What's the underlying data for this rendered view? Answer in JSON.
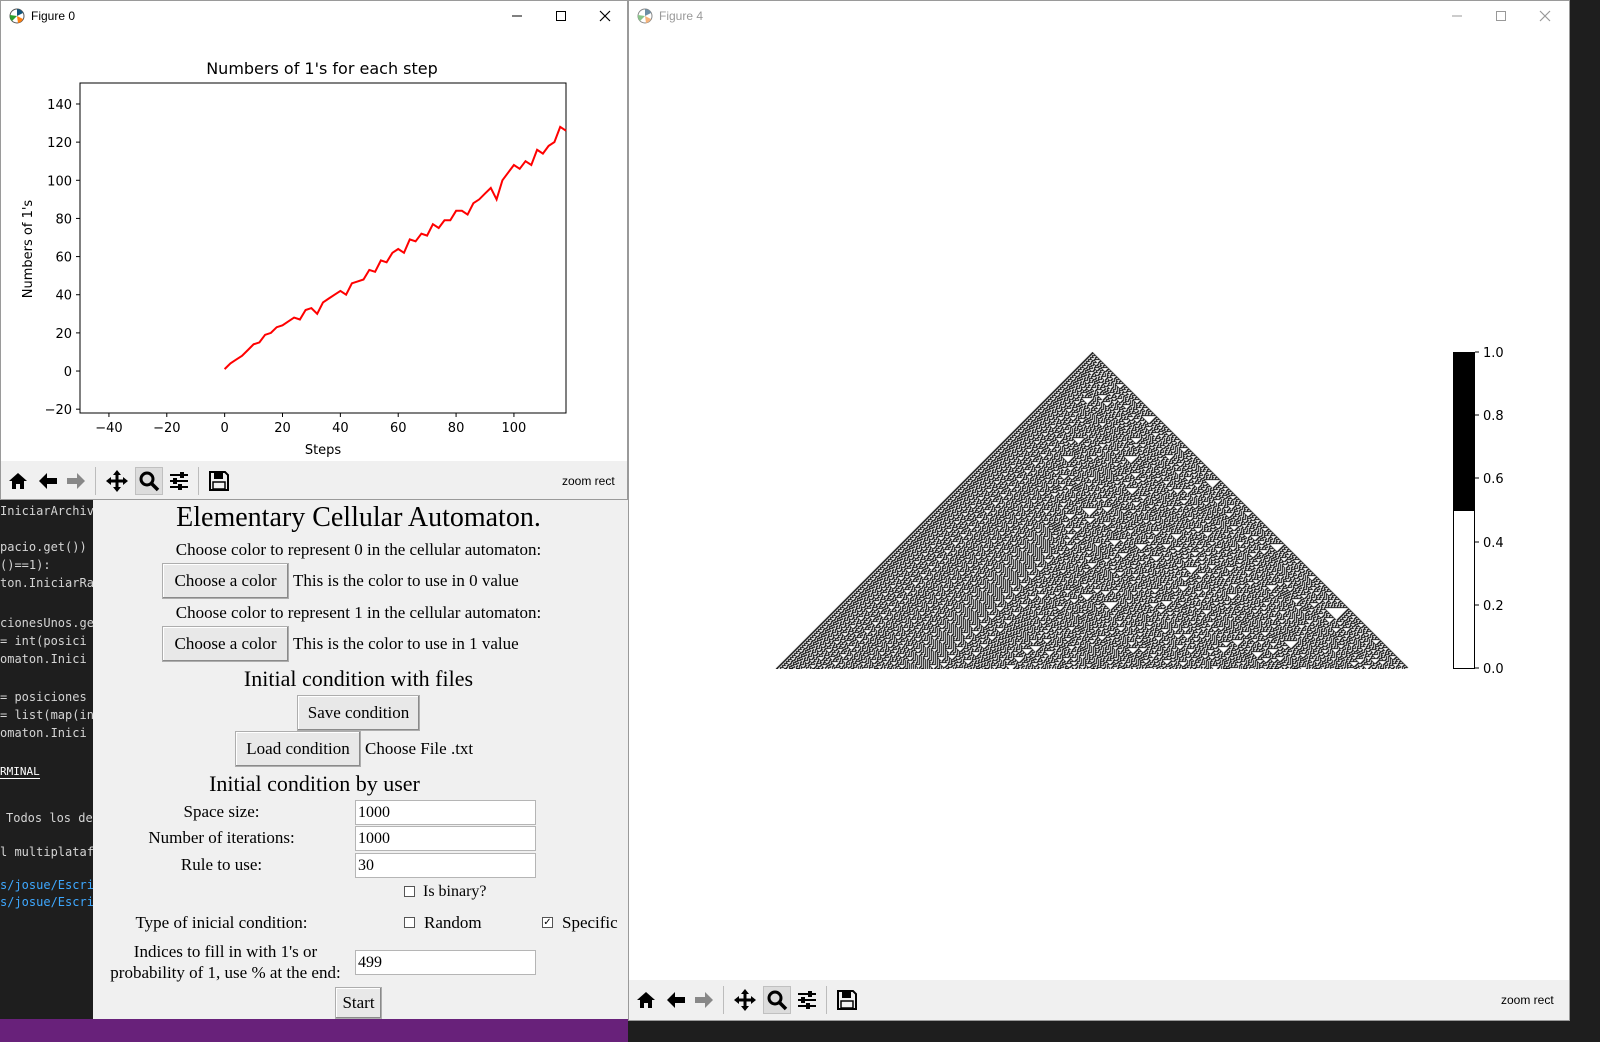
{
  "figure0": {
    "title": "Figure 0",
    "message": "zoom rect"
  },
  "figure4": {
    "title": "Figure 4",
    "message": "zoom rect",
    "colorbar": {
      "ticks": [
        "0.0",
        "0.2",
        "0.4",
        "0.6",
        "0.8",
        "1.0"
      ]
    }
  },
  "chart_data": {
    "type": "line",
    "title": "Numbers of 1's for each step",
    "xlabel": "Steps",
    "ylabel": "Numbers of 1's",
    "xlim": [
      -50,
      118
    ],
    "ylim": [
      -22,
      151
    ],
    "xticks": [
      "−40",
      "−20",
      "0",
      "20",
      "40",
      "60",
      "80",
      "100"
    ],
    "yticks": [
      "−20",
      "0",
      "20",
      "40",
      "60",
      "80",
      "100",
      "120",
      "140"
    ],
    "color": "#ff0000",
    "series": [
      {
        "x": [
          0,
          2,
          4,
          6,
          8,
          10,
          12,
          14,
          16,
          18,
          20,
          22,
          24,
          26,
          28,
          30,
          32,
          34,
          36,
          38,
          40,
          42,
          44,
          46,
          48,
          50,
          52,
          54,
          56,
          58,
          60,
          62,
          64,
          66,
          68,
          70,
          72,
          74,
          76,
          78,
          80,
          82,
          84,
          86,
          88,
          90,
          92,
          94,
          96,
          98,
          100,
          102,
          104,
          106,
          108,
          110,
          112,
          114,
          116,
          118
        ],
        "y": [
          1,
          4,
          6,
          8,
          11,
          14,
          15,
          19,
          20,
          23,
          24,
          26,
          28,
          27,
          32,
          33,
          30,
          36,
          38,
          40,
          42,
          40,
          46,
          47,
          48,
          53,
          52,
          58,
          57,
          62,
          64,
          62,
          69,
          68,
          72,
          71,
          77,
          75,
          79,
          79,
          84,
          84,
          82,
          88,
          90,
          93,
          96,
          90,
          100,
          104,
          108,
          106,
          110,
          108,
          116,
          114,
          118,
          120,
          128,
          126
        ]
      }
    ]
  },
  "tk": {
    "title": "Elementary Cellular Automaton.",
    "color0_prompt": "Choose color to represent 0 in the cellular automaton:",
    "choose_color_label": "Choose a color",
    "color0_desc": "This is the color to use in 0 value",
    "color1_prompt": "Choose color to represent 1 in the cellular automaton:",
    "color1_desc": "This is the color to use in 1 value",
    "files_heading": "Initial condition with files",
    "save_label": "Save condition",
    "load_label": "Load condition",
    "choose_file": "Choose File .txt",
    "user_heading": "Initial condition by user",
    "space_label": "Space size:",
    "space_value": "1000",
    "iter_label": "Number of iterations:",
    "iter_value": "1000",
    "rule_label": "Rule to use:",
    "rule_value": "30",
    "binary_label": "Is binary?",
    "type_label": "Type of inicial condition:",
    "random_label": "Random",
    "specific_label": "Specific",
    "indices_label_1": "Indices to fill in with 1's or",
    "indices_label_2": "probability of 1, use % at the end:",
    "indices_value": "499",
    "start_label": "Start"
  },
  "code": {
    "lines": [
      "IniciarArchivo",
      "",
      "pacio.get())",
      "()==1):",
      "ton.IniciarRa",
      "",
      "cionesUnos.ge",
      "= int(posici",
      "omaton.Inici",
      "",
      "= posiciones",
      "= list(map(in",
      "omaton.Inici"
    ],
    "terminal_tab": "RMINAL",
    "terminal_lines": [
      "Todos los der",
      "l multiplatafo",
      "s/josue/Escrit",
      "s/josue/Escrit"
    ]
  }
}
